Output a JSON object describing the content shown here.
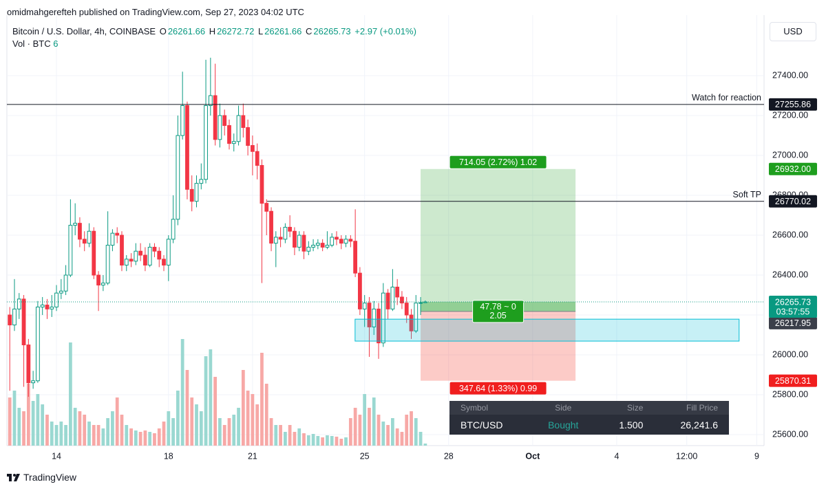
{
  "header": {
    "published": "omidmahgerefteh published on TradingView.com, Sep 27, 2023 04:02 UTC",
    "symbol": "Bitcoin / U.S. Dollar, 4h, COINBASE",
    "ohlc": [
      {
        "label": "O",
        "value": 26261.66
      },
      {
        "label": "H",
        "value": 26272.72
      },
      {
        "label": "L",
        "value": 26261.66
      },
      {
        "label": "C",
        "value": 26265.73
      }
    ],
    "change": "+2.97 (+0.01%)",
    "volume_label": "Vol · BTC",
    "volume_value": 6,
    "currency": "USD"
  },
  "chart_data": {
    "type": "candlestick",
    "x": [
      12.333,
      12.5,
      12.667,
      12.833,
      13,
      13.167,
      13.333,
      13.5,
      13.667,
      13.833,
      14,
      14.167,
      14.333,
      14.5,
      14.667,
      14.833,
      15,
      15.167,
      15.333,
      15.5,
      15.667,
      15.833,
      16,
      16.167,
      16.333,
      16.5,
      16.667,
      16.833,
      17,
      17.167,
      17.333,
      17.5,
      17.667,
      17.833,
      18,
      18.167,
      18.333,
      18.5,
      18.667,
      18.833,
      19,
      19.167,
      19.333,
      19.5,
      19.667,
      19.833,
      20,
      20.167,
      20.333,
      20.5,
      20.667,
      20.833,
      21,
      21.167,
      21.333,
      21.5,
      21.667,
      21.833,
      22,
      22.167,
      22.333,
      22.5,
      22.667,
      22.833,
      23,
      23.167,
      23.333,
      23.5,
      23.667,
      23.833,
      24,
      24.167,
      24.333,
      24.5,
      24.667,
      24.833,
      25,
      25.167,
      25.333,
      25.5,
      25.667,
      25.833,
      26,
      26.167,
      26.333,
      26.5,
      26.667,
      26.833,
      27,
      27.167
    ],
    "open": [
      26200,
      26150,
      26230,
      26280,
      26050,
      25860,
      25870,
      26240,
      26250,
      26230,
      26240,
      26310,
      26320,
      26400,
      26650,
      26660,
      26580,
      26560,
      26620,
      26400,
      26350,
      26360,
      26550,
      26610,
      26600,
      26450,
      26480,
      26470,
      26520,
      26500,
      26450,
      26540,
      26520,
      26480,
      26450,
      26580,
      26680,
      27100,
      27250,
      26830,
      26770,
      26860,
      26880,
      27250,
      27300,
      27080,
      27200,
      27150,
      27060,
      27070,
      27200,
      27140,
      27050,
      27020,
      26950,
      26760,
      26720,
      26560,
      26590,
      26580,
      26640,
      26620,
      26540,
      26600,
      26520,
      26540,
      26550,
      26560,
      26540,
      26550,
      26590,
      26580,
      26560,
      26580,
      26570,
      26410,
      26230,
      26260,
      26140,
      26230,
      26060,
      26310,
      26230,
      26340,
      26290,
      26260,
      26200,
      26120,
      26260,
      26261.66
    ],
    "high": [
      26240,
      26380,
      26310,
      26300,
      26080,
      25920,
      26270,
      26290,
      26280,
      26300,
      26350,
      26380,
      26450,
      26780,
      26760,
      26690,
      26620,
      26660,
      26640,
      26420,
      26400,
      26720,
      26630,
      26640,
      26620,
      26500,
      26510,
      26560,
      26560,
      26540,
      26560,
      26560,
      26540,
      26500,
      26600,
      26800,
      27200,
      27420,
      27270,
      26900,
      26900,
      26960,
      27480,
      27490,
      27460,
      27260,
      27230,
      27180,
      27110,
      27250,
      27260,
      27180,
      27100,
      27060,
      26980,
      26780,
      26740,
      26620,
      26640,
      26660,
      26700,
      26640,
      26620,
      26620,
      26570,
      26580,
      26580,
      26580,
      26620,
      26610,
      26620,
      26600,
      26600,
      26600,
      26730,
      26440,
      26300,
      26290,
      26270,
      26260,
      26360,
      26330,
      26430,
      26380,
      26320,
      26290,
      26230,
      26300,
      26290,
      26272.72
    ],
    "low": [
      25820,
      26120,
      26180,
      25840,
      25790,
      25830,
      25860,
      26200,
      26180,
      26190,
      26220,
      26280,
      26300,
      26390,
      26600,
      26540,
      26520,
      26540,
      26380,
      26220,
      26320,
      26350,
      26520,
      26560,
      26420,
      26420,
      26440,
      26450,
      26470,
      26420,
      26440,
      26490,
      26440,
      26420,
      26370,
      26560,
      26650,
      27080,
      26780,
      26720,
      26740,
      26830,
      26860,
      27200,
      27050,
      27040,
      27100,
      27030,
      27020,
      27050,
      27090,
      27000,
      26900,
      26880,
      26360,
      26600,
      26520,
      26440,
      26540,
      26560,
      26590,
      26500,
      26520,
      26480,
      26500,
      26520,
      26530,
      26520,
      26530,
      26540,
      26550,
      26530,
      26540,
      26540,
      26390,
      26200,
      26140,
      25990,
      26100,
      25980,
      26040,
      26180,
      26220,
      26250,
      26230,
      26160,
      26080,
      26110,
      26200,
      26261.66
    ],
    "close": [
      26150,
      26230,
      26280,
      26050,
      25860,
      25870,
      26240,
      26250,
      26230,
      26240,
      26310,
      26320,
      26400,
      26650,
      26660,
      26580,
      26560,
      26620,
      26400,
      26350,
      26360,
      26550,
      26610,
      26600,
      26450,
      26480,
      26470,
      26520,
      26500,
      26450,
      26540,
      26520,
      26480,
      26450,
      26580,
      26680,
      27100,
      27250,
      26830,
      26770,
      26860,
      26880,
      27250,
      27300,
      27080,
      27200,
      27150,
      27060,
      27070,
      27200,
      27140,
      27050,
      27020,
      26950,
      26760,
      26720,
      26560,
      26590,
      26580,
      26640,
      26620,
      26540,
      26600,
      26520,
      26540,
      26550,
      26560,
      26540,
      26550,
      26590,
      26580,
      26560,
      26580,
      26570,
      26410,
      26230,
      26260,
      26140,
      26230,
      26060,
      26310,
      26230,
      26340,
      26290,
      26260,
      26200,
      26120,
      26260,
      26261.66,
      26265.73
    ],
    "volume": [
      140,
      160,
      110,
      100,
      180,
      130,
      150,
      120,
      90,
      70,
      60,
      70,
      60,
      300,
      110,
      100,
      90,
      70,
      60,
      60,
      50,
      80,
      100,
      140,
      90,
      60,
      50,
      44,
      40,
      44,
      40,
      36,
      50,
      70,
      100,
      80,
      160,
      310,
      220,
      140,
      120,
      100,
      260,
      280,
      200,
      80,
      60,
      80,
      90,
      110,
      220,
      160,
      150,
      120,
      270,
      180,
      80,
      60,
      60,
      40,
      60,
      40,
      50,
      36,
      30,
      34,
      28,
      24,
      30,
      28,
      26,
      20,
      24,
      80,
      110,
      90,
      150,
      110,
      140,
      90,
      70,
      60,
      80,
      50,
      40,
      90,
      100,
      80,
      40,
      6
    ],
    "up_color": "#089981",
    "down_color": "#f23645",
    "volume_up_color": "#9ad8d1",
    "volume_down_color": "#f7a8a6",
    "xlim": [
      12.23,
      39.26
    ],
    "ylim": [
      25545,
      27676
    ],
    "xticks": [
      14,
      18,
      21,
      25,
      28,
      {
        "value": 31,
        "label": "Oct"
      },
      {
        "value": 34,
        "label": "4"
      },
      {
        "value": 36.5,
        "label": "12:00"
      },
      {
        "value": 39,
        "label": "9"
      }
    ],
    "yticks": [
      {
        "value": 25600,
        "label": "25600.00"
      },
      {
        "value": 25800,
        "label": "25800.00"
      },
      {
        "value": 26000,
        "label": "26000.00"
      },
      {
        "value": 26200,
        "label": "26200.00"
      },
      {
        "value": 26400,
        "label": "26400.00"
      },
      {
        "value": 26600,
        "label": "26600.00"
      },
      {
        "value": 26800,
        "label": "26800.00"
      },
      {
        "value": 27000,
        "label": "27000.00"
      },
      {
        "value": 27200,
        "label": "27200.00"
      },
      {
        "value": 27400,
        "label": "27400.00"
      }
    ],
    "grid": true,
    "last_price": {
      "value": 26265.73,
      "countdown": "03:57:55"
    },
    "hlines": [
      {
        "label": "Watch for reaction",
        "value": 27255.86,
        "x_start": 12.23
      },
      {
        "label": "Soft TP",
        "value": 26770.02,
        "x_start": 21.52
      }
    ],
    "zone": {
      "x": [
        24.66,
        38.37
      ],
      "y": [
        26069,
        26179
      ],
      "color": "#00bcd4"
    },
    "position": {
      "x": [
        27.0,
        32.53
      ],
      "entry": 26217.95,
      "take_profit": {
        "value": 26932,
        "label": "26932.00"
      },
      "stop_loss": 25870.31,
      "target_label": "714.05 (2.72%) 1.02",
      "center_label": [
        "47.78 ~ 0",
        "2.05"
      ],
      "stop_label": "347.64 (1.33%) 0.99",
      "profit_color": "#4caf50",
      "loss_color": "#f44336"
    }
  },
  "order_table": {
    "columns": [
      "Symbol",
      "Side",
      "Size",
      "Fill Price"
    ],
    "row": [
      "BTC/USD",
      "Bought",
      "1.500",
      "26,241.6"
    ]
  },
  "footer": {
    "brand": "TradingView"
  }
}
